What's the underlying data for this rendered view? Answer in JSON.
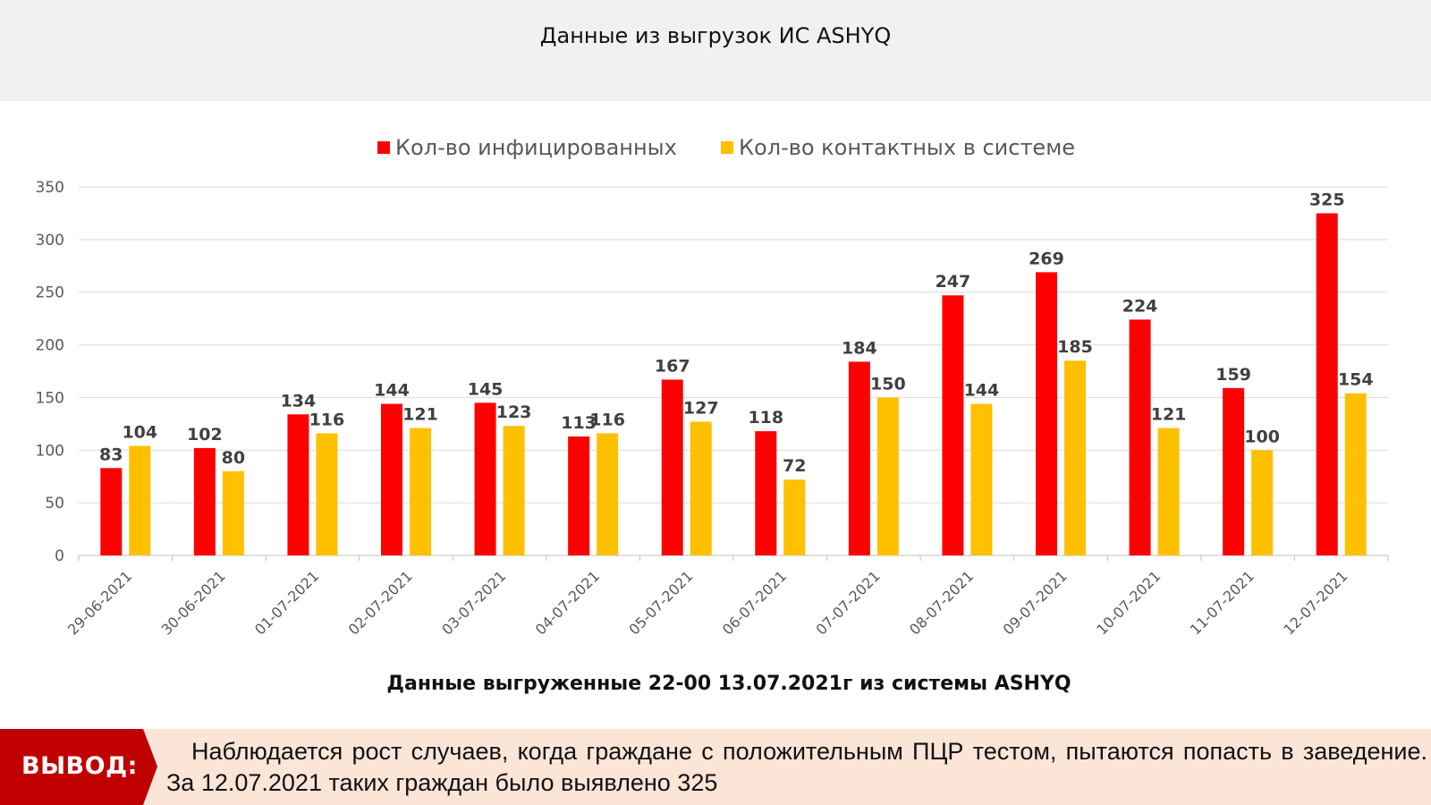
{
  "header": {
    "title": "Данные из выгрузок ИС ASHYQ"
  },
  "chart_data": {
    "type": "bar",
    "categories": [
      "29-06-2021",
      "30-06-2021",
      "01-07-2021",
      "02-07-2021",
      "03-07-2021",
      "04-07-2021",
      "05-07-2021",
      "06-07-2021",
      "07-07-2021",
      "08-07-2021",
      "09-07-2021",
      "10-07-2021",
      "11-07-2021",
      "12-07-2021"
    ],
    "series": [
      {
        "name": "Кол-во инфицированных",
        "color": "#ff0000",
        "values": [
          83,
          102,
          134,
          144,
          145,
          113,
          167,
          118,
          184,
          247,
          269,
          224,
          159,
          325
        ]
      },
      {
        "name": "Кол-во контактных в системе",
        "color": "#ffc000",
        "values": [
          104,
          80,
          116,
          121,
          123,
          116,
          127,
          72,
          150,
          144,
          185,
          121,
          100,
          154
        ]
      }
    ],
    "ylim": [
      0,
      350
    ],
    "yticks": [
      0,
      50,
      100,
      150,
      200,
      250,
      300,
      350
    ],
    "grid": true,
    "legend": "top-center",
    "data_labels": true
  },
  "note": "Данные выгруженные 22-00 13.07.2021г из системы ASHYQ",
  "conclusion": {
    "label": "ВЫВОД:",
    "text": "Наблюдается рост случаев, когда граждане с положительным ПЦР тестом, пытаются попасть в заведение. За 12.07.2021 таких граждан было выявлено 325",
    "label_bg": "#c00000",
    "bg": "#fbe5d6"
  }
}
